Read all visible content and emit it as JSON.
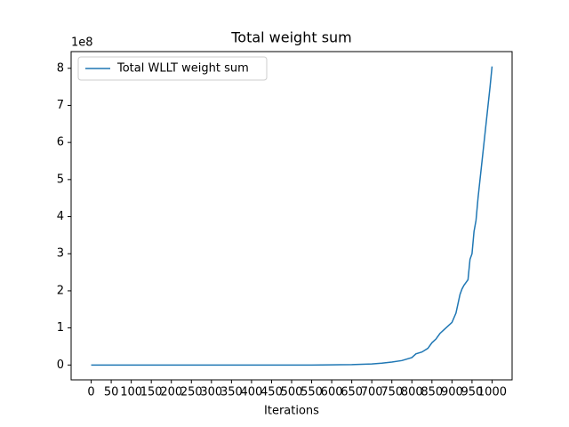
{
  "chart_data": {
    "type": "line",
    "title": "Total weight sum",
    "x_label": "Iterations",
    "y_offset_label": "1e8",
    "x": [
      0,
      50,
      100,
      150,
      200,
      250,
      300,
      350,
      400,
      450,
      500,
      550,
      600,
      650,
      700,
      725,
      750,
      775,
      800,
      810,
      825,
      840,
      850,
      860,
      870,
      880,
      890,
      900,
      910,
      920,
      925,
      930,
      940,
      945,
      950,
      955,
      960,
      965,
      970,
      975,
      980,
      985,
      990,
      995,
      1000
    ],
    "series": [
      {
        "name": "Total WLLT weight sum",
        "color": "#1f77b4",
        "values": [
          0,
          0,
          0,
          0,
          0,
          0,
          0,
          0,
          0,
          0,
          0,
          0,
          0.005,
          0.01,
          0.03,
          0.05,
          0.08,
          0.12,
          0.2,
          0.3,
          0.35,
          0.45,
          0.6,
          0.7,
          0.85,
          0.95,
          1.05,
          1.15,
          1.4,
          1.9,
          2.05,
          2.15,
          2.3,
          2.85,
          3.0,
          3.6,
          3.9,
          4.5,
          5.0,
          5.5,
          6.0,
          6.5,
          7.0,
          7.5,
          8.05
        ]
      }
    ],
    "xlim": [
      -50,
      1050
    ],
    "ylim": [
      -0.4,
      8.45
    ],
    "xticks": [
      0,
      50,
      100,
      150,
      200,
      250,
      300,
      350,
      400,
      450,
      500,
      550,
      600,
      650,
      700,
      750,
      800,
      850,
      900,
      950,
      1000
    ],
    "yticks": [
      0,
      1,
      2,
      3,
      4,
      5,
      6,
      7,
      8
    ],
    "legend": "upper left"
  }
}
